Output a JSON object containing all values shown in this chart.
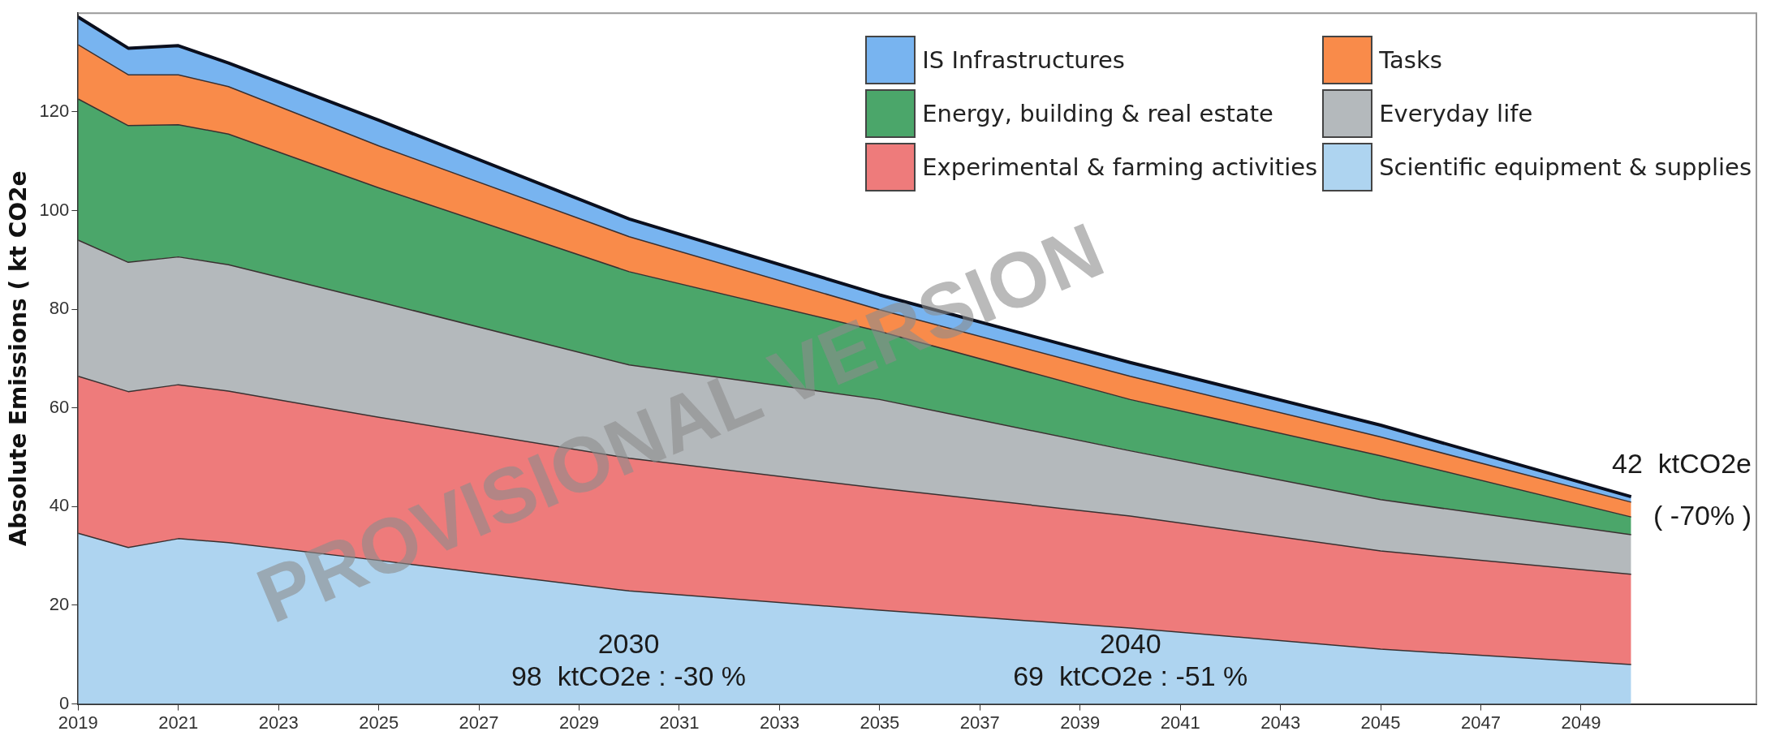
{
  "chart_data": {
    "type": "area",
    "stacked": true,
    "ylabel": "Absolute Emissions ( kt CO2e",
    "x": [
      2019,
      2020,
      2021,
      2022,
      2025,
      2030,
      2035,
      2040,
      2045,
      2050
    ],
    "xlim": [
      2019,
      2052.5
    ],
    "xticks": [
      2019,
      2021,
      2023,
      2025,
      2027,
      2029,
      2031,
      2033,
      2035,
      2037,
      2039,
      2041,
      2043,
      2045,
      2047,
      2049
    ],
    "ylim": [
      0,
      140
    ],
    "yticks": [
      0,
      20,
      40,
      60,
      80,
      100,
      120
    ],
    "grid": false,
    "legend": "top right",
    "series": [
      {
        "name": "Scientific equipment & supplies",
        "color": "#aed4f0",
        "values": [
          34.6,
          31.7,
          33.5,
          32.7,
          29.1,
          22.9,
          19.0,
          15.4,
          11.1,
          8.0
        ]
      },
      {
        "name": "Experimental & farming activities",
        "color": "#ee7b7b",
        "values": [
          31.8,
          31.6,
          31.2,
          30.7,
          29.0,
          26.9,
          24.7,
          22.7,
          19.9,
          18.3
        ]
      },
      {
        "name": "Everyday life",
        "color": "#b4b9bc",
        "values": [
          27.6,
          26.2,
          25.9,
          25.6,
          23.4,
          18.9,
          18.0,
          13.2,
          10.4,
          8.0
        ]
      },
      {
        "name": "Energy, building & real estate",
        "color": "#4ba66a",
        "values": [
          28.6,
          27.7,
          26.8,
          26.5,
          23.1,
          18.9,
          13.8,
          10.4,
          8.9,
          3.6
        ]
      },
      {
        "name": "Tasks",
        "color": "#f98b4a",
        "values": [
          11.0,
          10.3,
          10.1,
          9.6,
          8.5,
          7.1,
          4.4,
          4.7,
          3.8,
          3.0
        ]
      },
      {
        "name": "IS Infrastructures",
        "color": "#78b4f0",
        "values": [
          5.6,
          5.4,
          5.9,
          4.8,
          5.2,
          3.6,
          3.0,
          2.8,
          2.4,
          1.1
        ]
      }
    ],
    "annotations": [
      "2030",
      "98  ktCO2e : -30 %",
      "2040",
      "69  ktCO2e : -51 %",
      "42  ktCO2e",
      "( -70% )",
      "PROVISIONAL VERSION"
    ]
  }
}
